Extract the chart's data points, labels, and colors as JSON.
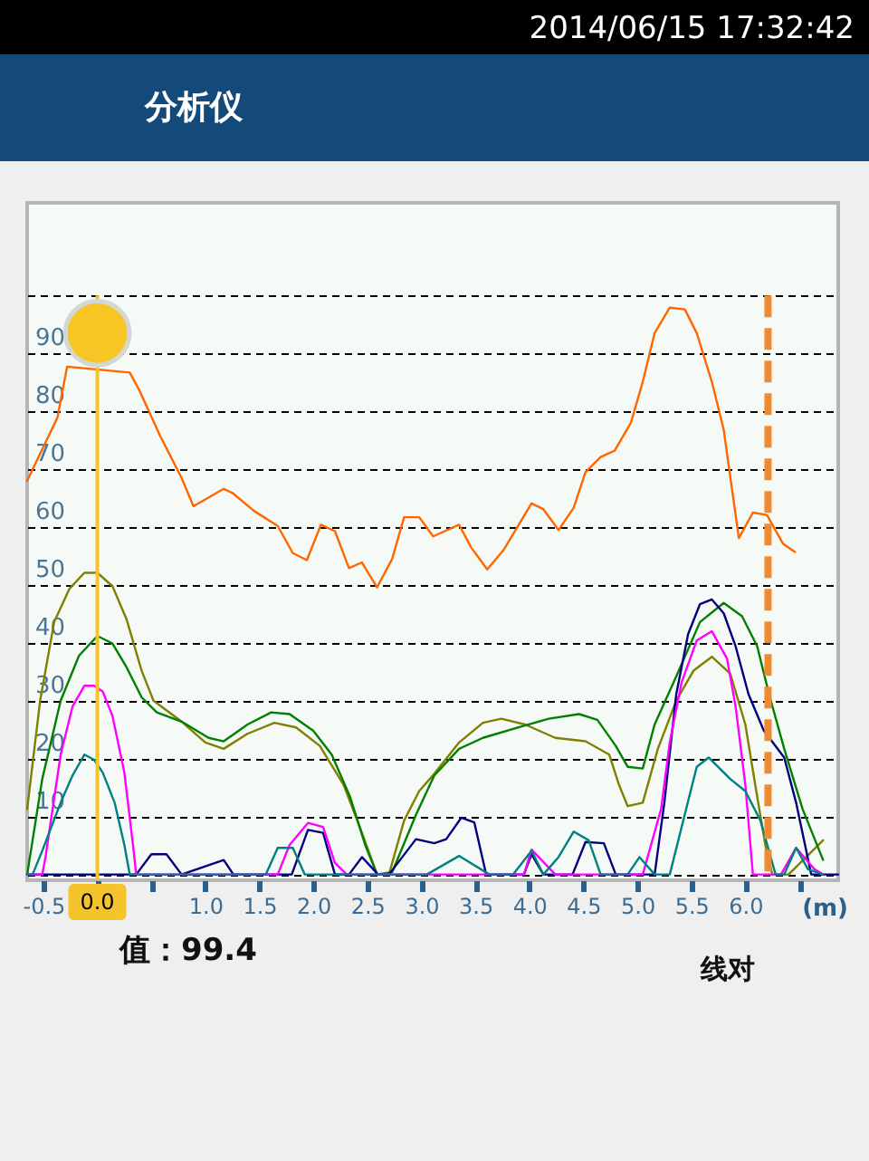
{
  "chart_data": {
    "type": "line",
    "title": "分析仪",
    "xlabel": "(m)",
    "xlim": [
      -0.65,
      6.86
    ],
    "ylim": [
      -1,
      116
    ],
    "xticks": [
      {
        "value": -0.5,
        "label": "-0.5"
      },
      {
        "value": 0,
        "label": null
      },
      {
        "value": 0.5,
        "label": null
      },
      {
        "value": 1,
        "label": "1.0"
      },
      {
        "value": 1.5,
        "label": "1.5"
      },
      {
        "value": 2,
        "label": "2.0"
      },
      {
        "value": 2.5,
        "label": "2.5"
      },
      {
        "value": 3,
        "label": "3.0"
      },
      {
        "value": 3.5,
        "label": "3.5"
      },
      {
        "value": 4,
        "label": "4.0"
      },
      {
        "value": 4.5,
        "label": "4.5"
      },
      {
        "value": 5,
        "label": "5.0"
      },
      {
        "value": 5.5,
        "label": "5.5"
      },
      {
        "value": 6,
        "label": "6.0"
      },
      {
        "value": 6.5,
        "label": null
      }
    ],
    "yticks": [
      {
        "value": 0,
        "label": null
      },
      10,
      20,
      30,
      40,
      50,
      60,
      70,
      80,
      90,
      {
        "value": 100,
        "label": null
      }
    ],
    "grid": "y",
    "marker": "none",
    "line_style": "solid",
    "series": [
      {
        "color": "#808000",
        "x": [
          -0.65,
          -0.53,
          -0.4,
          -0.26,
          -0.12,
          0,
          0.14,
          0.27,
          0.41,
          0.52,
          0.78,
          1.0,
          1.17,
          1.39,
          1.64,
          1.84,
          2.06,
          2.28,
          2.45,
          2.59,
          2.7,
          2.84,
          2.98,
          3.12,
          3.35,
          3.57,
          3.74,
          3.96,
          4.24,
          4.52,
          4.74,
          4.83,
          4.91,
          5.05,
          5.19,
          5.36,
          5.52,
          5.69,
          5.86,
          6.0,
          6.11,
          6.19,
          6.25,
          6.4,
          6.72
        ],
        "values": [
          11.3,
          30.0,
          43.6,
          49.3,
          52.1,
          52.1,
          49.8,
          44.1,
          35.2,
          30.0,
          26.4,
          22.8,
          21.7,
          24.3,
          26.2,
          25.4,
          22.2,
          15.5,
          7.2,
          0,
          0,
          9.3,
          14.4,
          17.4,
          22.8,
          26.2,
          26.9,
          25.9,
          23.6,
          23.0,
          20.7,
          15.5,
          11.8,
          12.4,
          21.7,
          30.0,
          35.2,
          37.6,
          34.7,
          25.9,
          13.4,
          4.6,
          0,
          0,
          5.9
        ]
      },
      {
        "color": "#008000",
        "x": [
          -0.65,
          -0.51,
          -0.34,
          -0.17,
          0,
          0.14,
          0.27,
          0.41,
          0.55,
          0.78,
          1.03,
          1.17,
          1.39,
          1.61,
          1.78,
          2.0,
          2.17,
          2.34,
          2.48,
          2.59,
          2.73,
          2.95,
          3.12,
          3.35,
          3.57,
          3.9,
          4.18,
          4.46,
          4.63,
          4.8,
          4.91,
          5.05,
          5.16,
          5.36,
          5.58,
          5.8,
          5.97,
          6.11,
          6.22,
          6.36,
          6.53,
          6.72
        ],
        "values": [
          0,
          16.5,
          30.0,
          37.8,
          41.2,
          39.9,
          35.8,
          30.6,
          28.0,
          26.4,
          23.6,
          23.0,
          25.9,
          28.0,
          27.7,
          24.8,
          20.7,
          13.4,
          5.1,
          0,
          0.4,
          10.3,
          17.1,
          21.7,
          23.6,
          25.4,
          26.9,
          27.7,
          26.7,
          22.2,
          18.6,
          18.3,
          25.9,
          34.2,
          43.6,
          46.9,
          44.6,
          39.4,
          31.1,
          21.7,
          11.3,
          2.5
        ]
      },
      {
        "color": "#000080",
        "x": [
          -0.65,
          0.36,
          0.5,
          0.64,
          0.78,
          1.17,
          1.26,
          1.8,
          1.95,
          2.09,
          2.2,
          2.33,
          2.45,
          2.6,
          2.7,
          2.95,
          3.12,
          3.23,
          3.37,
          3.49,
          3.6,
          3.95,
          4.02,
          4.13,
          4.4,
          4.52,
          4.69,
          4.8,
          5.16,
          5.25,
          5.36,
          5.47,
          5.58,
          5.69,
          5.8,
          5.91,
          6.03,
          6.17,
          6.36,
          6.47,
          6.61,
          6.86
        ],
        "values": [
          0,
          0,
          3.5,
          3.5,
          0,
          2.5,
          0,
          0,
          7.7,
          7.2,
          0,
          0,
          3.0,
          0,
          0,
          6.1,
          5.4,
          6.1,
          9.8,
          9.0,
          0,
          0,
          3.5,
          0,
          0,
          5.6,
          5.4,
          0,
          0,
          12.4,
          31.1,
          41.5,
          46.7,
          47.5,
          45.1,
          39.4,
          31.1,
          24.9,
          20.2,
          12.4,
          0,
          0
        ]
      },
      {
        "color": "#ff00ff",
        "x": [
          -0.65,
          -0.51,
          -0.48,
          -0.34,
          -0.23,
          -0.12,
          -0.03,
          0.05,
          0.14,
          0.25,
          0.33,
          0.36,
          1.67,
          1.78,
          1.95,
          2.09,
          2.2,
          2.31,
          3.95,
          4.02,
          4.24,
          5.05,
          5.22,
          5.3,
          5.41,
          5.55,
          5.69,
          5.83,
          5.91,
          6.0,
          6.07,
          6.33,
          6.47,
          6.64,
          6.72
        ],
        "values": [
          0,
          0,
          3.0,
          20.7,
          29.0,
          32.6,
          32.6,
          31.6,
          27.4,
          17.6,
          5.1,
          0,
          0,
          5.1,
          8.9,
          8.2,
          2.0,
          0,
          0,
          4.3,
          0,
          0,
          11.3,
          22.8,
          33.2,
          40.4,
          42.0,
          37.3,
          29.0,
          15.5,
          0,
          0,
          4.6,
          0.9,
          0
        ]
      },
      {
        "color": "#008080",
        "x": [
          -0.65,
          -0.6,
          -0.51,
          -0.34,
          -0.23,
          -0.12,
          -0.03,
          0.05,
          0.16,
          0.25,
          0.3,
          1.56,
          1.67,
          1.81,
          1.92,
          3.05,
          3.35,
          3.63,
          3.85,
          4.02,
          4.13,
          4.27,
          4.41,
          4.55,
          4.66,
          4.91,
          5.02,
          5.16,
          5.3,
          5.41,
          5.55,
          5.66,
          5.86,
          6.0,
          6.14,
          6.28,
          6.36,
          6.47,
          6.58,
          6.72
        ],
        "values": [
          0,
          0,
          4.1,
          12.4,
          17.1,
          20.7,
          19.8,
          17.6,
          12.4,
          5.1,
          0,
          0,
          4.6,
          4.6,
          0,
          0,
          3.2,
          0,
          0,
          4.1,
          0,
          3.0,
          7.4,
          5.9,
          0,
          0,
          3.0,
          0,
          0,
          8.2,
          18.6,
          20.2,
          16.5,
          14.4,
          9.3,
          0,
          0,
          4.6,
          0.9,
          0
        ]
      },
      {
        "color": "#ff6600",
        "x": [
          -0.65,
          -0.37,
          -0.28,
          0.3,
          0.39,
          0.58,
          0.78,
          0.89,
          1.17,
          1.25,
          1.45,
          1.67,
          1.81,
          1.94,
          2.07,
          2.2,
          2.33,
          2.45,
          2.59,
          2.73,
          2.84,
          2.98,
          3.11,
          3.35,
          3.46,
          3.61,
          3.76,
          4.02,
          4.13,
          4.27,
          4.41,
          4.52,
          4.66,
          4.79,
          4.94,
          5.05,
          5.16,
          5.3,
          5.44,
          5.55,
          5.69,
          5.8,
          5.87,
          5.94,
          6.07,
          6.2,
          6.35,
          6.46
        ],
        "values": [
          68.0,
          78.9,
          87.7,
          86.7,
          83.6,
          75.8,
          68.5,
          63.6,
          66.6,
          65.9,
          62.8,
          60.2,
          55.5,
          54.3,
          60.4,
          59.3,
          52.9,
          53.9,
          49.6,
          54.5,
          61.7,
          61.7,
          58.4,
          60.4,
          56.5,
          52.7,
          56.0,
          64.1,
          63.1,
          59.5,
          63.3,
          69.5,
          72.1,
          73.2,
          78.0,
          85.1,
          93.5,
          97.9,
          97.6,
          93.5,
          85.1,
          76.8,
          67.4,
          58.1,
          62.5,
          62.1,
          57.1,
          55.7
        ]
      },
      {
        "type": "scatter",
        "marker": "circle",
        "color": "#f7c624",
        "x": [
          0
        ],
        "values": [
          93.5
        ]
      }
    ],
    "ref_lines": [
      {
        "axis": "x",
        "value": 0,
        "label": "0.0",
        "color": "#f5c42c"
      },
      {
        "axis": "x",
        "value": 6.21,
        "color": "#f08a30",
        "line_style": "dashed"
      }
    ],
    "annotations": [
      "2014/06/15 17:32:42",
      "值：99.4",
      "线对"
    ]
  }
}
